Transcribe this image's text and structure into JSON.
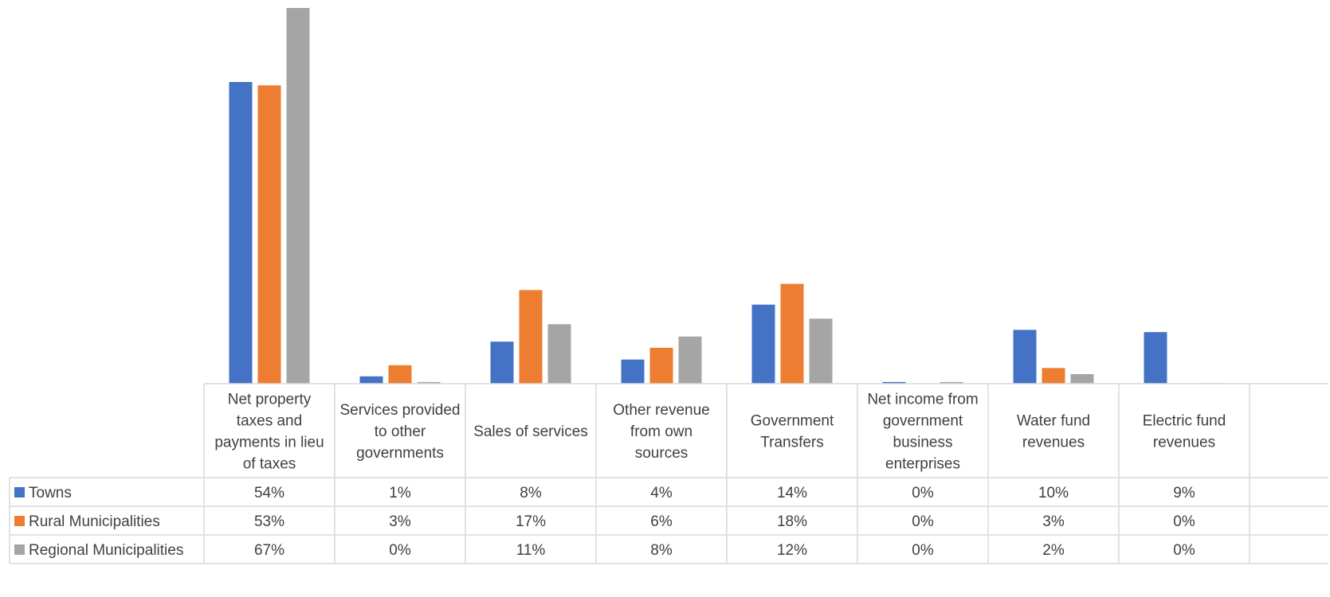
{
  "chart_data": {
    "type": "bar",
    "title": "",
    "xlabel": "",
    "ylabel": "",
    "grid": false,
    "legend": "data-table",
    "ylim": [
      0,
      67
    ],
    "categories": [
      "Net property taxes and payments in lieu of taxes",
      "Services provided to other governments",
      "Sales of services",
      "Other revenue from own sources",
      "Government Transfers",
      "Net income from government business enterprises",
      "Water fund revenues",
      "Electric fund revenues"
    ],
    "category_lines": [
      [
        "Net property",
        "taxes and",
        "payments in lieu",
        "of taxes"
      ],
      [
        "Services provided",
        "to other",
        "governments"
      ],
      [
        "Sales of services"
      ],
      [
        "Other revenue",
        "from own",
        "sources"
      ],
      [
        "Government",
        "Transfers"
      ],
      [
        "Net income from",
        "government",
        "business",
        "enterprises"
      ],
      [
        "Water fund",
        "revenues"
      ],
      [
        "Electric fund",
        "revenues"
      ]
    ],
    "series": [
      {
        "name": "Towns",
        "color": "#4472C4",
        "values": [
          53.8,
          1.3,
          7.5,
          4.3,
          14.1,
          0.3,
          9.6,
          9.2
        ],
        "labels": [
          "54%",
          "1%",
          "8%",
          "4%",
          "14%",
          "0%",
          "10%",
          "9%"
        ]
      },
      {
        "name": "Rural Municipalities",
        "color": "#ED7D31",
        "values": [
          53.2,
          3.3,
          16.7,
          6.4,
          17.8,
          0.0,
          2.8,
          0.0
        ],
        "labels": [
          "53%",
          "3%",
          "17%",
          "6%",
          "18%",
          "0%",
          "3%",
          "0%"
        ]
      },
      {
        "name": "Regional Municipalities",
        "color": "#A5A5A5",
        "values": [
          67.0,
          0.3,
          10.6,
          8.4,
          11.6,
          0.3,
          1.7,
          0.1
        ],
        "labels": [
          "67%",
          "0%",
          "11%",
          "8%",
          "12%",
          "0%",
          "2%",
          "0%"
        ]
      }
    ]
  }
}
